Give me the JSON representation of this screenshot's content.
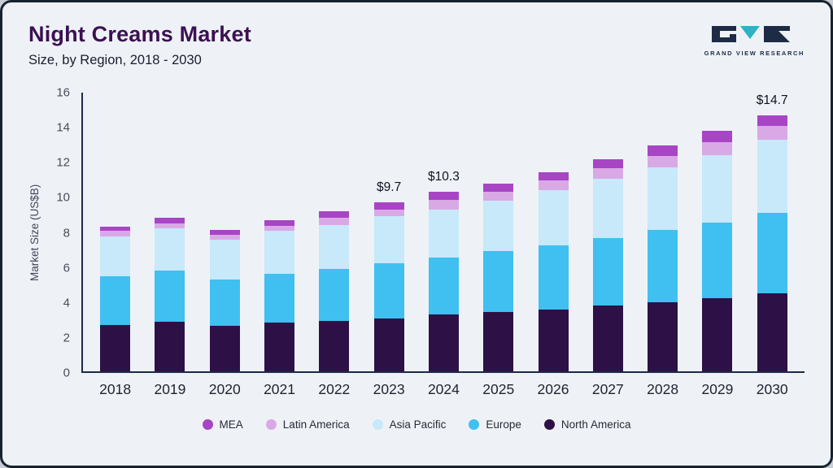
{
  "header": {
    "title": "Night Creams Market",
    "subtitle": "Size, by Region, 2018 - 2030"
  },
  "logo": {
    "text": "GRAND VIEW RESEARCH"
  },
  "chart_data": {
    "type": "bar",
    "stacked": true,
    "title": "Night Creams Market Size, by Region, 2018 - 2030",
    "ylabel": "Market Size (US$B)",
    "xlabel": "",
    "ylim": [
      0,
      16
    ],
    "yticks": [
      0,
      2,
      4,
      6,
      8,
      10,
      12,
      14,
      16
    ],
    "grid": false,
    "legend_position": "bottom",
    "categories": [
      "2018",
      "2019",
      "2020",
      "2021",
      "2022",
      "2023",
      "2024",
      "2025",
      "2026",
      "2027",
      "2028",
      "2029",
      "2030"
    ],
    "series": [
      {
        "name": "North America",
        "color": "#2d1146",
        "values": [
          2.65,
          2.85,
          2.6,
          2.8,
          2.9,
          3.05,
          3.25,
          3.4,
          3.55,
          3.8,
          3.95,
          4.2,
          4.5
        ]
      },
      {
        "name": "Europe",
        "color": "#3fc0f0",
        "values": [
          2.8,
          2.95,
          2.65,
          2.8,
          3.0,
          3.15,
          3.3,
          3.5,
          3.7,
          3.85,
          4.15,
          4.35,
          4.6
        ]
      },
      {
        "name": "Asia Pacific",
        "color": "#c7e9fa",
        "values": [
          2.3,
          2.4,
          2.3,
          2.45,
          2.5,
          2.7,
          2.75,
          2.9,
          3.15,
          3.4,
          3.6,
          3.85,
          4.2
        ]
      },
      {
        "name": "Latin America",
        "color": "#d9a9e6",
        "values": [
          0.3,
          0.3,
          0.28,
          0.3,
          0.4,
          0.4,
          0.55,
          0.5,
          0.55,
          0.6,
          0.65,
          0.75,
          0.8
        ]
      },
      {
        "name": "MEA",
        "color": "#a845c5",
        "values": [
          0.25,
          0.3,
          0.27,
          0.35,
          0.4,
          0.4,
          0.45,
          0.5,
          0.5,
          0.55,
          0.6,
          0.65,
          0.6
        ]
      }
    ],
    "totals": [
      8.3,
      8.8,
      8.1,
      8.7,
      9.2,
      9.7,
      10.3,
      10.8,
      11.45,
      12.2,
      12.95,
      13.8,
      14.7
    ],
    "annotations": [
      {
        "category": "2023",
        "label": "$9.7"
      },
      {
        "category": "2024",
        "label": "$10.3"
      },
      {
        "category": "2030",
        "label": "$14.7"
      }
    ],
    "legend": [
      {
        "label": "MEA",
        "color": "#a845c5"
      },
      {
        "label": "Latin America",
        "color": "#d9a9e6"
      },
      {
        "label": "Asia Pacific",
        "color": "#c7e9fa"
      },
      {
        "label": "Europe",
        "color": "#3fc0f0"
      },
      {
        "label": "North America",
        "color": "#2d1146"
      }
    ]
  }
}
